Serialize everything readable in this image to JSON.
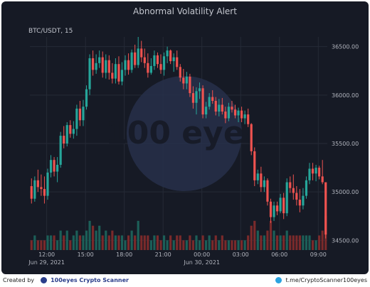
{
  "title": "Abnormal Volatility Alert",
  "symbol_label": "BTC/USDT, 15",
  "watermark": "100 eyes",
  "footer": {
    "created_by": "Created by",
    "brand": "100eyes Crypto Scanner",
    "telegram": "t.me/CryptoScanner100eyes"
  },
  "colors": {
    "up": "#26a69a",
    "down": "#ef5350",
    "background": "#161a25",
    "grid": "#252a36",
    "text": "#b2b5be"
  },
  "chart_data": {
    "type": "candlestick",
    "title": "Abnormal Volatility Alert",
    "symbol": "BTC/USDT",
    "interval": "15",
    "ylim": [
      34400,
      36600
    ],
    "y_ticks": [
      "34500.00",
      "35000.00",
      "35500.00",
      "36000.00",
      "36500.00"
    ],
    "x_ticks": [
      "12:00",
      "15:00",
      "18:00",
      "21:00",
      "00:00",
      "03:00",
      "06:00",
      "09:00"
    ],
    "x_tick_positions": [
      4.7,
      16.7,
      28.7,
      40.7,
      52.7,
      64.7,
      76.7,
      88.7
    ],
    "date_labels": [
      {
        "label": "Jun 29, 2021",
        "index": 4.7
      },
      {
        "label": "Jun 30, 2021",
        "index": 52.7
      }
    ],
    "candles": [
      [
        35060,
        35140,
        34880,
        34930
      ],
      [
        34930,
        35160,
        34900,
        35120
      ],
      [
        35120,
        35230,
        35000,
        35050
      ],
      [
        35050,
        35180,
        34960,
        35030
      ],
      [
        35030,
        35160,
        34880,
        34960
      ],
      [
        34960,
        35240,
        34920,
        35200
      ],
      [
        35200,
        35380,
        35150,
        35330
      ],
      [
        35330,
        35360,
        35160,
        35210
      ],
      [
        35210,
        35360,
        35100,
        35280
      ],
      [
        35280,
        35620,
        35250,
        35580
      ],
      [
        35580,
        35680,
        35450,
        35500
      ],
      [
        35500,
        35720,
        35470,
        35690
      ],
      [
        35690,
        35740,
        35560,
        35600
      ],
      [
        35600,
        35730,
        35550,
        35650
      ],
      [
        35650,
        35900,
        35580,
        35860
      ],
      [
        35860,
        35940,
        35680,
        35740
      ],
      [
        35740,
        35950,
        35680,
        35880
      ],
      [
        35880,
        36100,
        35850,
        36060
      ],
      [
        36060,
        36420,
        36000,
        36380
      ],
      [
        36380,
        36460,
        36200,
        36260
      ],
      [
        36260,
        36420,
        36220,
        36330
      ],
      [
        36330,
        36460,
        36280,
        36390
      ],
      [
        36390,
        36450,
        36180,
        36230
      ],
      [
        36230,
        36420,
        36170,
        36360
      ],
      [
        36360,
        36410,
        36160,
        36230
      ],
      [
        36230,
        36330,
        36120,
        36170
      ],
      [
        36170,
        36380,
        36120,
        36320
      ],
      [
        36320,
        36400,
        36110,
        36140
      ],
      [
        36140,
        36340,
        36100,
        36260
      ],
      [
        36260,
        36410,
        36200,
        36360
      ],
      [
        36360,
        36430,
        36210,
        36260
      ],
      [
        36260,
        36470,
        36230,
        36440
      ],
      [
        36440,
        36520,
        36280,
        36310
      ],
      [
        36310,
        36600,
        36280,
        36480
      ],
      [
        36480,
        36560,
        36340,
        36390
      ],
      [
        36390,
        36480,
        36280,
        36330
      ],
      [
        36330,
        36430,
        36180,
        36230
      ],
      [
        36230,
        36380,
        36210,
        36300
      ],
      [
        36300,
        36460,
        36260,
        36410
      ],
      [
        36410,
        36440,
        36280,
        36320
      ],
      [
        36320,
        36420,
        36220,
        36260
      ],
      [
        36260,
        36440,
        36200,
        36400
      ],
      [
        36400,
        36500,
        36330,
        36460
      ],
      [
        36460,
        36470,
        36320,
        36350
      ],
      [
        36350,
        36430,
        36240,
        36390
      ],
      [
        36390,
        36460,
        36260,
        36290
      ],
      [
        36290,
        36320,
        36140,
        36180
      ],
      [
        36180,
        36270,
        36060,
        36120
      ],
      [
        36120,
        36240,
        36060,
        36190
      ],
      [
        36190,
        36220,
        35980,
        36020
      ],
      [
        36020,
        36090,
        35860,
        35920
      ],
      [
        35920,
        36080,
        35800,
        36040
      ],
      [
        36040,
        36130,
        35960,
        36070
      ],
      [
        36070,
        36100,
        35760,
        35800
      ],
      [
        35800,
        35930,
        35760,
        35880
      ],
      [
        35880,
        36020,
        35850,
        35980
      ],
      [
        35980,
        36050,
        35910,
        35940
      ],
      [
        35940,
        35980,
        35790,
        35830
      ],
      [
        35830,
        35960,
        35780,
        35900
      ],
      [
        35900,
        35970,
        35800,
        35830
      ],
      [
        35830,
        35880,
        35710,
        35760
      ],
      [
        35760,
        35920,
        35730,
        35880
      ],
      [
        35880,
        35940,
        35820,
        35850
      ],
      [
        35850,
        35900,
        35760,
        35790
      ],
      [
        35790,
        35870,
        35720,
        35840
      ],
      [
        35840,
        35880,
        35720,
        35760
      ],
      [
        35760,
        35840,
        35700,
        35800
      ],
      [
        35800,
        35860,
        35670,
        35700
      ],
      [
        35700,
        35710,
        35380,
        35420
      ],
      [
        35420,
        35460,
        35060,
        35120
      ],
      [
        35120,
        35230,
        35080,
        35190
      ],
      [
        35190,
        35260,
        35000,
        35050
      ],
      [
        35050,
        35160,
        35000,
        35120
      ],
      [
        35120,
        35140,
        34860,
        34900
      ],
      [
        34900,
        34930,
        34680,
        34740
      ],
      [
        34740,
        34900,
        34700,
        34860
      ],
      [
        34860,
        34900,
        34760,
        34800
      ],
      [
        34800,
        34980,
        34780,
        34940
      ],
      [
        34940,
        34990,
        34720,
        34780
      ],
      [
        34780,
        35140,
        34750,
        35100
      ],
      [
        35100,
        35160,
        34990,
        35040
      ],
      [
        35040,
        35180,
        34920,
        34990
      ],
      [
        34990,
        35060,
        34860,
        34920
      ],
      [
        34920,
        35030,
        34790,
        34860
      ],
      [
        34860,
        35040,
        34820,
        34960
      ],
      [
        34960,
        35160,
        34930,
        35120
      ],
      [
        35120,
        35300,
        35080,
        35240
      ],
      [
        35240,
        35300,
        35120,
        35190
      ],
      [
        35190,
        35280,
        35110,
        35250
      ],
      [
        35250,
        35270,
        35130,
        35160
      ],
      [
        35160,
        35330,
        35080,
        35100
      ],
      [
        35100,
        35100,
        34520,
        34560
      ]
    ],
    "volume": [
      2,
      3,
      2,
      2,
      2,
      3,
      3,
      3,
      2,
      4,
      3,
      4,
      2,
      3,
      4,
      3,
      3,
      4,
      6,
      5,
      4,
      5,
      3,
      4,
      3,
      4,
      3,
      3,
      3,
      2,
      3,
      4,
      3,
      6,
      3,
      3,
      3,
      2,
      3,
      3,
      2,
      3,
      2,
      3,
      2,
      3,
      3,
      2,
      2,
      3,
      2,
      3,
      2,
      3,
      2,
      3,
      2,
      3,
      2,
      3,
      2,
      2,
      2,
      2,
      2,
      2,
      2,
      3,
      5,
      6,
      4,
      3,
      3,
      4,
      6,
      4,
      3,
      3,
      3,
      4,
      3,
      3,
      3,
      3,
      3,
      3,
      3,
      2,
      2,
      3,
      4,
      7
    ]
  }
}
